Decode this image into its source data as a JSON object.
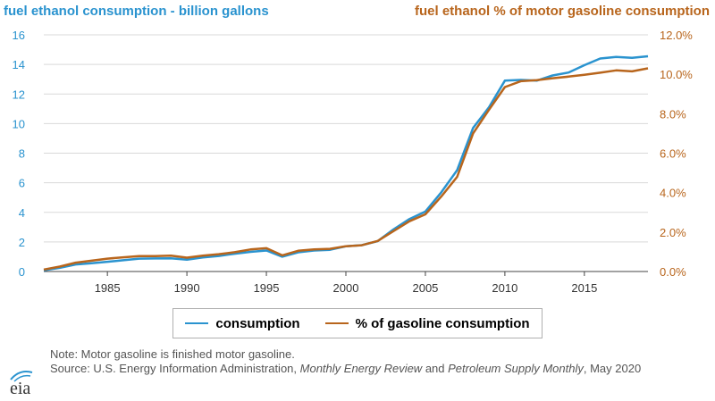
{
  "chart_data": {
    "type": "line",
    "title_left": "fuel ethanol consumption - billion gallons",
    "title_right": "fuel ethanol % of motor gasoline consumption",
    "x": [
      1981,
      1982,
      1983,
      1984,
      1985,
      1986,
      1987,
      1988,
      1989,
      1990,
      1991,
      1992,
      1993,
      1994,
      1995,
      1996,
      1997,
      1998,
      1999,
      2000,
      2001,
      2002,
      2003,
      2004,
      2005,
      2006,
      2007,
      2008,
      2009,
      2010,
      2011,
      2012,
      2013,
      2014,
      2015,
      2016,
      2017,
      2018,
      2019
    ],
    "xlim": [
      1981,
      2019
    ],
    "x_ticks": [
      "1985",
      "1990",
      "1995",
      "2000",
      "2005",
      "2010",
      "2015"
    ],
    "y_left": {
      "label": "billion gallons",
      "ylim": [
        0,
        16
      ],
      "ticks": [
        "0",
        "2",
        "4",
        "6",
        "8",
        "10",
        "12",
        "14",
        "16"
      ]
    },
    "y_right": {
      "label": "percent",
      "ylim": [
        0,
        12
      ],
      "ticks": [
        "0.0%",
        "2.0%",
        "4.0%",
        "6.0%",
        "8.0%",
        "10.0%",
        "12.0%"
      ]
    },
    "series": [
      {
        "name": "consumption",
        "axis": "left",
        "color": "#2a93cf",
        "values": [
          0.08,
          0.25,
          0.48,
          0.56,
          0.66,
          0.76,
          0.87,
          0.88,
          0.89,
          0.8,
          0.95,
          1.05,
          1.2,
          1.33,
          1.42,
          1.0,
          1.3,
          1.42,
          1.47,
          1.7,
          1.78,
          2.05,
          2.85,
          3.55,
          4.05,
          5.35,
          6.85,
          9.7,
          11.1,
          12.9,
          12.95,
          12.9,
          13.25,
          13.45,
          13.95,
          14.4,
          14.5,
          14.45,
          14.55
        ]
      },
      {
        "name": "% of gasoline consumption",
        "axis": "right",
        "color": "#b8651c",
        "values": [
          0.1,
          0.25,
          0.45,
          0.55,
          0.65,
          0.72,
          0.78,
          0.78,
          0.8,
          0.7,
          0.8,
          0.88,
          0.98,
          1.12,
          1.18,
          0.82,
          1.05,
          1.12,
          1.15,
          1.28,
          1.33,
          1.55,
          2.05,
          2.55,
          2.9,
          3.8,
          4.8,
          7.0,
          8.2,
          9.35,
          9.65,
          9.7,
          9.8,
          9.88,
          9.97,
          10.08,
          10.2,
          10.15,
          10.3
        ]
      }
    ],
    "legend": [
      "consumption",
      "% of gasoline consumption"
    ],
    "legend_position": "bottom-center"
  },
  "notes": {
    "line1": "Note: Motor gasoline is finished motor gasoline.",
    "source_prefix": "Source: U.S. Energy Information Administration, ",
    "source_italic1": "Monthly Energy Review",
    "source_and": " and ",
    "source_italic2": "Petroleum Supply Monthly",
    "source_suffix": ", May 2020"
  },
  "logo": {
    "text": "eia"
  },
  "colors": {
    "left_axis": "#2a93cf",
    "right_axis": "#b8651c",
    "grid": "#d9d9d9"
  }
}
